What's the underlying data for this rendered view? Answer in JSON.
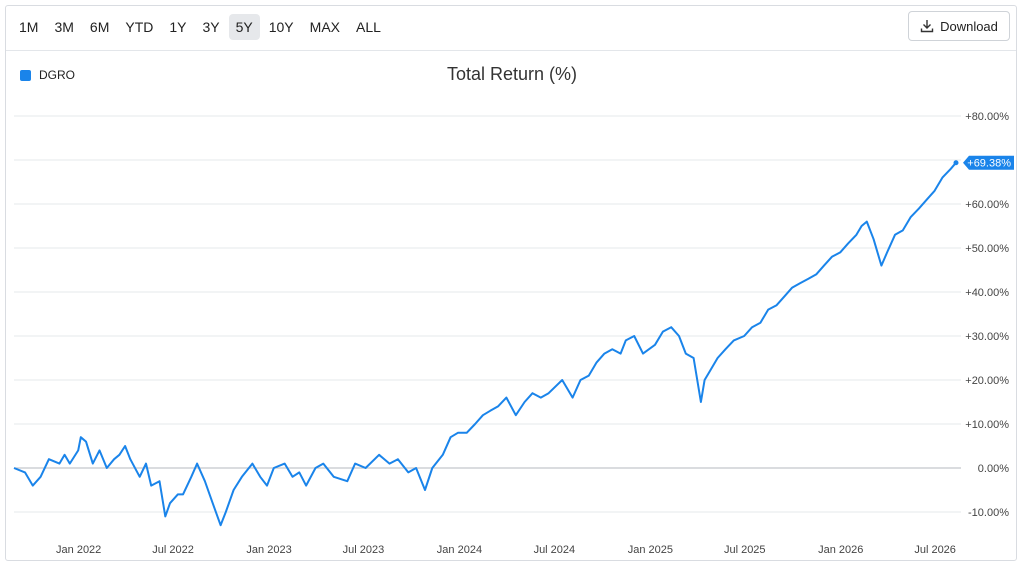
{
  "toolbar": {
    "ranges": [
      "1M",
      "3M",
      "6M",
      "YTD",
      "1Y",
      "3Y",
      "5Y",
      "10Y",
      "MAX",
      "ALL"
    ],
    "active_range": "5Y",
    "download_label": "Download"
  },
  "colors": {
    "series": "#1a84ea",
    "grid": "#e6e8eb",
    "zero": "#c4c7cc"
  },
  "chart_data": {
    "type": "line",
    "title": "Total Return (%)",
    "ylabel": "",
    "xlabel": "",
    "legend_position": "top-left",
    "grid": true,
    "ylim": [
      -12,
      80
    ],
    "yticks": [
      "+80.00%",
      "+70.00%",
      "+60.00%",
      "+50.00%",
      "+40.00%",
      "+30.00%",
      "+20.00%",
      "+10.00%",
      "0.00%",
      "-10.00%"
    ],
    "ytick_values": [
      80,
      70,
      60,
      50,
      40,
      30,
      20,
      10,
      0,
      -10
    ],
    "xticks": [
      "Jan 2022",
      "Jul 2022",
      "Jan 2023",
      "Jul 2023",
      "Jan 2024",
      "Jul 2024",
      "Jan 2025",
      "Jul 2025",
      "Jan 2026",
      "Jul 2026"
    ],
    "xtick_dates": [
      "2022-01-01",
      "2022-07-01",
      "2023-01-01",
      "2023-07-01",
      "2024-01-01",
      "2024-07-01",
      "2025-01-01",
      "2025-07-01",
      "2026-01-01",
      "2026-07-01"
    ],
    "last_value_label": "+69.38%",
    "series": [
      {
        "name": "DGRO",
        "points": [
          [
            "2021-08-30",
            0.0
          ],
          [
            "2021-09-20",
            -1
          ],
          [
            "2021-10-05",
            -4
          ],
          [
            "2021-10-20",
            -2
          ],
          [
            "2021-11-05",
            2
          ],
          [
            "2021-11-25",
            1
          ],
          [
            "2021-12-05",
            3
          ],
          [
            "2021-12-15",
            1
          ],
          [
            "2021-12-31",
            4
          ],
          [
            "2022-01-05",
            7
          ],
          [
            "2022-01-15",
            6
          ],
          [
            "2022-01-28",
            1
          ],
          [
            "2022-02-10",
            4
          ],
          [
            "2022-02-24",
            0
          ],
          [
            "2022-03-10",
            2
          ],
          [
            "2022-03-20",
            3
          ],
          [
            "2022-03-31",
            5
          ],
          [
            "2022-04-10",
            2
          ],
          [
            "2022-04-28",
            -2
          ],
          [
            "2022-05-10",
            1
          ],
          [
            "2022-05-20",
            -4
          ],
          [
            "2022-06-05",
            -3
          ],
          [
            "2022-06-16",
            -11
          ],
          [
            "2022-06-25",
            -8
          ],
          [
            "2022-07-10",
            -6
          ],
          [
            "2022-07-20",
            -6
          ],
          [
            "2022-08-05",
            -2
          ],
          [
            "2022-08-16",
            1
          ],
          [
            "2022-08-31",
            -3
          ],
          [
            "2022-09-15",
            -8
          ],
          [
            "2022-09-30",
            -13
          ],
          [
            "2022-10-10",
            -10
          ],
          [
            "2022-10-25",
            -5
          ],
          [
            "2022-11-10",
            -2
          ],
          [
            "2022-11-30",
            1
          ],
          [
            "2022-12-15",
            -2
          ],
          [
            "2022-12-28",
            -4
          ],
          [
            "2023-01-10",
            0
          ],
          [
            "2023-01-31",
            1
          ],
          [
            "2023-02-15",
            -2
          ],
          [
            "2023-02-28",
            -1
          ],
          [
            "2023-03-13",
            -4
          ],
          [
            "2023-03-31",
            0
          ],
          [
            "2023-04-15",
            1
          ],
          [
            "2023-05-05",
            -2
          ],
          [
            "2023-05-31",
            -3
          ],
          [
            "2023-06-15",
            1
          ],
          [
            "2023-07-05",
            0
          ],
          [
            "2023-07-31",
            3
          ],
          [
            "2023-08-20",
            1
          ],
          [
            "2023-09-05",
            2
          ],
          [
            "2023-09-25",
            -1
          ],
          [
            "2023-10-10",
            0
          ],
          [
            "2023-10-27",
            -5
          ],
          [
            "2023-11-10",
            0
          ],
          [
            "2023-11-30",
            3
          ],
          [
            "2023-12-15",
            7
          ],
          [
            "2023-12-29",
            8
          ],
          [
            "2024-01-15",
            8
          ],
          [
            "2024-01-31",
            10
          ],
          [
            "2024-02-15",
            12
          ],
          [
            "2024-02-29",
            13
          ],
          [
            "2024-03-15",
            14
          ],
          [
            "2024-03-31",
            16
          ],
          [
            "2024-04-18",
            12
          ],
          [
            "2024-05-05",
            15
          ],
          [
            "2024-05-20",
            17
          ],
          [
            "2024-06-05",
            16
          ],
          [
            "2024-06-20",
            17
          ],
          [
            "2024-07-16",
            20
          ],
          [
            "2024-08-05",
            16
          ],
          [
            "2024-08-20",
            20
          ],
          [
            "2024-09-05",
            21
          ],
          [
            "2024-09-20",
            24
          ],
          [
            "2024-10-05",
            26
          ],
          [
            "2024-10-20",
            27
          ],
          [
            "2024-11-05",
            26
          ],
          [
            "2024-11-15",
            29
          ],
          [
            "2024-12-01",
            30
          ],
          [
            "2024-12-18",
            26
          ],
          [
            "2025-01-10",
            28
          ],
          [
            "2025-01-25",
            31
          ],
          [
            "2025-02-10",
            32
          ],
          [
            "2025-02-25",
            30
          ],
          [
            "2025-03-10",
            26
          ],
          [
            "2025-03-25",
            25
          ],
          [
            "2025-04-08",
            15
          ],
          [
            "2025-04-15",
            20
          ],
          [
            "2025-04-25",
            22
          ],
          [
            "2025-05-10",
            25
          ],
          [
            "2025-05-25",
            27
          ],
          [
            "2025-06-10",
            29
          ],
          [
            "2025-06-30",
            30
          ],
          [
            "2025-07-15",
            32
          ],
          [
            "2025-07-31",
            33
          ],
          [
            "2025-08-15",
            36
          ],
          [
            "2025-08-31",
            37
          ],
          [
            "2025-09-15",
            39
          ],
          [
            "2025-09-30",
            41
          ],
          [
            "2025-10-15",
            42
          ],
          [
            "2025-10-31",
            43
          ],
          [
            "2025-11-15",
            44
          ],
          [
            "2025-11-30",
            46
          ],
          [
            "2025-12-15",
            48
          ],
          [
            "2025-12-31",
            49
          ],
          [
            "2026-01-15",
            51
          ],
          [
            "2026-01-31",
            53
          ],
          [
            "2026-02-10",
            55
          ],
          [
            "2026-02-20",
            56
          ],
          [
            "2026-03-05",
            52
          ],
          [
            "2026-03-20",
            46
          ],
          [
            "2026-03-31",
            49
          ],
          [
            "2026-04-15",
            53
          ],
          [
            "2026-04-30",
            54
          ],
          [
            "2026-05-15",
            57
          ],
          [
            "2026-05-31",
            59
          ],
          [
            "2026-06-15",
            61
          ],
          [
            "2026-06-30",
            63
          ],
          [
            "2026-07-15",
            66
          ],
          [
            "2026-07-31",
            68
          ],
          [
            "2026-08-10",
            69.38
          ]
        ]
      }
    ]
  }
}
